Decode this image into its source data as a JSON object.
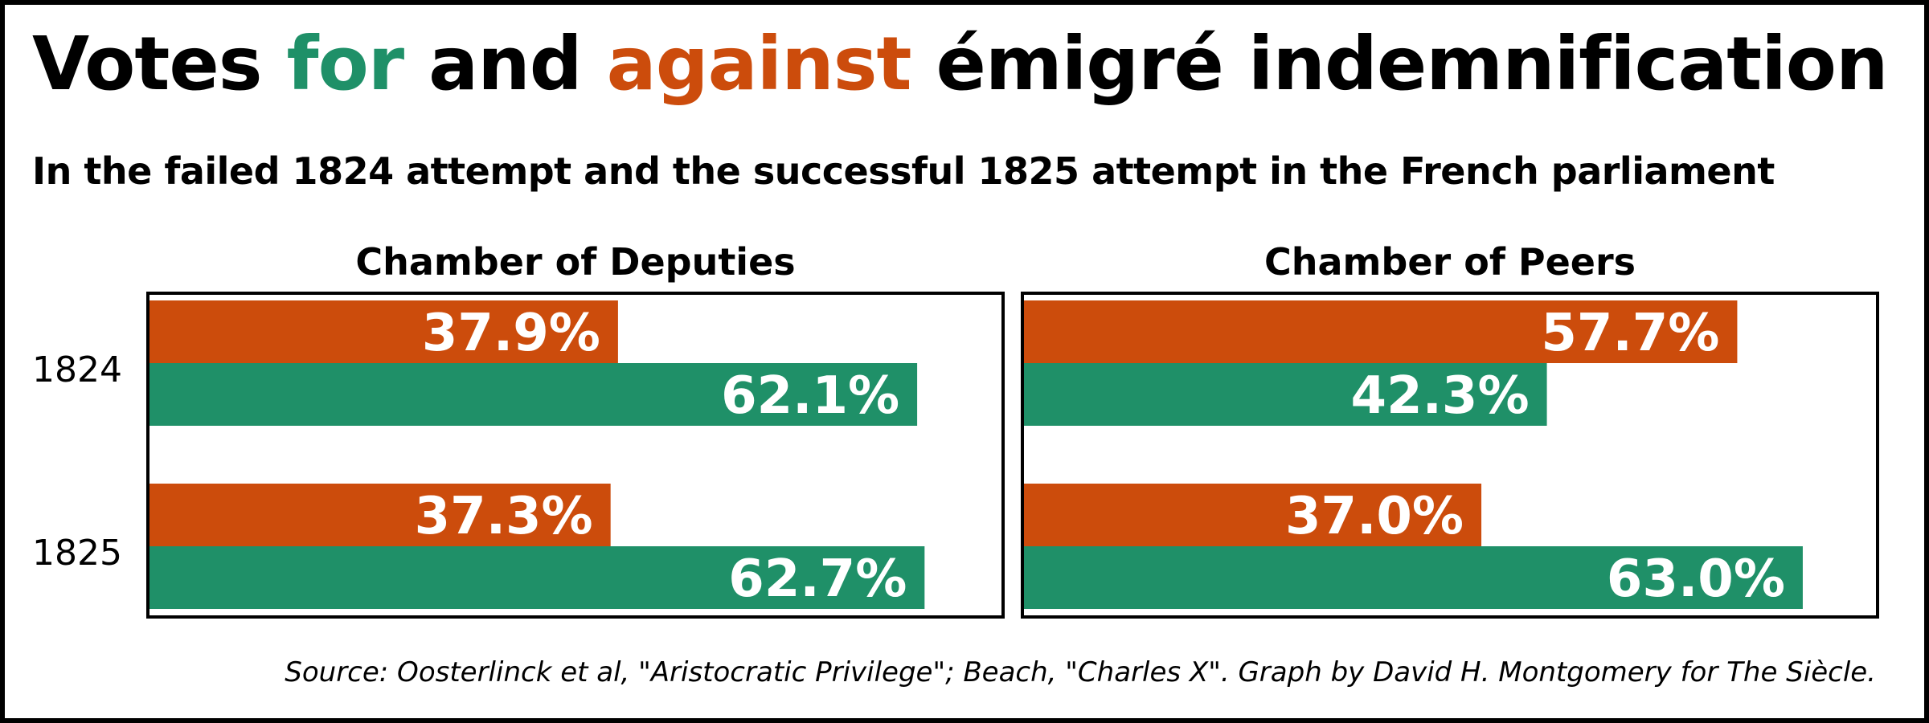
{
  "title": {
    "part1": "Votes ",
    "for_word": "for",
    "part2": " and ",
    "against_word": "against",
    "part3": " émigré indemnification"
  },
  "subtitle": "In the failed 1824 attempt and the successful 1825 attempt in the French parliament",
  "source": "Source: Oosterlinck et al, \"Aristocratic Privilege\"; Beach, \"Charles X\". Graph by David H. Montgomery for The Siècle.",
  "colors": {
    "for": "#1f9068",
    "against": "#cc4c0c",
    "text": "#000000",
    "label": "#ffffff"
  },
  "chart_data": {
    "type": "bar",
    "orientation": "horizontal",
    "categories": [
      "1824",
      "1825"
    ],
    "xlim": [
      0,
      100
    ],
    "unit": "%",
    "panels": [
      {
        "title": "Chamber of Deputies",
        "series": [
          {
            "name": "against",
            "values": [
              37.9,
              37.3
            ],
            "labels": [
              "37.9%",
              "37.3%"
            ]
          },
          {
            "name": "for",
            "values": [
              62.1,
              62.7
            ],
            "labels": [
              "62.1%",
              "62.7%"
            ]
          }
        ]
      },
      {
        "title": "Chamber of Peers",
        "series": [
          {
            "name": "against",
            "values": [
              57.7,
              37.0
            ],
            "labels": [
              "57.7%",
              "37.0%"
            ]
          },
          {
            "name": "for",
            "values": [
              42.3,
              63.0
            ],
            "labels": [
              "42.3%",
              "63.0%"
            ]
          }
        ]
      }
    ]
  }
}
